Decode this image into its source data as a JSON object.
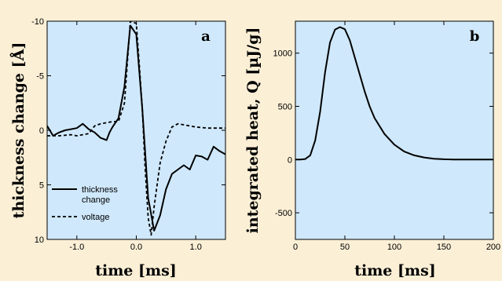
{
  "chart_data": [
    {
      "type": "line",
      "panel_label": "a",
      "xlabel": "time [ms]",
      "ylabel": "thickness change [Å]",
      "xlim": [
        -1.5,
        1.5
      ],
      "ylim": [
        10,
        -10
      ],
      "y_inverted": true,
      "x_ticks": [
        -1.0,
        0.0,
        1.0
      ],
      "x_tick_labels": [
        "-1.0",
        "0.0",
        "1.0"
      ],
      "y_ticks": [
        -10,
        -5,
        0,
        5,
        10
      ],
      "y_tick_labels": [
        "-10",
        "-5",
        "0",
        "5",
        "10"
      ],
      "grid": false,
      "legend_position": "bottom-left",
      "series": [
        {
          "name": "thickness change",
          "style": "solid",
          "x": [
            -1.5,
            -1.4,
            -1.3,
            -1.2,
            -1.1,
            -1.0,
            -0.9,
            -0.8,
            -0.7,
            -0.6,
            -0.5,
            -0.45,
            -0.4,
            -0.3,
            -0.2,
            -0.1,
            0.0,
            0.1,
            0.2,
            0.3,
            0.4,
            0.5,
            0.6,
            0.7,
            0.8,
            0.9,
            1.0,
            1.1,
            1.2,
            1.3,
            1.4,
            1.5
          ],
          "y": [
            -0.4,
            0.5,
            0.2,
            0.0,
            -0.1,
            -0.2,
            -0.6,
            -0.1,
            0.2,
            0.7,
            0.9,
            0.2,
            -0.3,
            -1.1,
            -4.0,
            -9.6,
            -8.8,
            -2.0,
            6.2,
            9.2,
            7.8,
            5.4,
            4.0,
            3.6,
            3.2,
            3.6,
            2.3,
            2.4,
            2.7,
            1.5,
            1.9,
            2.2
          ]
        },
        {
          "name": "voltage",
          "style": "dashed",
          "x": [
            -1.5,
            -1.3,
            -1.1,
            -1.0,
            -0.9,
            -0.8,
            -0.7,
            -0.6,
            -0.5,
            -0.4,
            -0.3,
            -0.2,
            -0.1,
            0.0,
            0.05,
            0.1,
            0.15,
            0.2,
            0.25,
            0.3,
            0.4,
            0.5,
            0.6,
            0.7,
            0.8,
            0.9,
            1.0,
            1.2,
            1.4,
            1.5
          ],
          "y": [
            0.5,
            0.5,
            0.4,
            0.5,
            0.4,
            0.3,
            -0.4,
            -0.6,
            -0.7,
            -0.8,
            -0.8,
            -2.5,
            -10.0,
            -9.8,
            -6.0,
            -2.0,
            3.5,
            8.0,
            9.6,
            7.0,
            3.0,
            1.0,
            -0.3,
            -0.6,
            -0.5,
            -0.4,
            -0.3,
            -0.2,
            -0.2,
            -0.2
          ]
        }
      ]
    },
    {
      "type": "line",
      "panel_label": "b",
      "xlabel": "time [ms]",
      "ylabel": "integrated heat, Q [µJ/g]",
      "xlim": [
        0,
        200
      ],
      "ylim": [
        -750,
        1300
      ],
      "x_ticks": [
        0,
        50,
        100,
        150,
        200
      ],
      "x_tick_labels": [
        "0",
        "50",
        "100",
        "150",
        "200"
      ],
      "y_ticks": [
        -500,
        0,
        500,
        1000
      ],
      "y_tick_labels": [
        "-500",
        "0",
        "500",
        "1000"
      ],
      "grid": false,
      "series": [
        {
          "style": "solid",
          "x": [
            0,
            5,
            10,
            15,
            20,
            25,
            30,
            35,
            40,
            45,
            50,
            55,
            60,
            65,
            70,
            75,
            80,
            90,
            100,
            110,
            120,
            130,
            140,
            150,
            160,
            180,
            200
          ],
          "y": [
            0,
            0,
            5,
            40,
            180,
            450,
            820,
            1100,
            1220,
            1245,
            1225,
            1120,
            960,
            800,
            640,
            500,
            390,
            240,
            140,
            75,
            40,
            20,
            8,
            3,
            0,
            0,
            0
          ]
        }
      ]
    }
  ]
}
